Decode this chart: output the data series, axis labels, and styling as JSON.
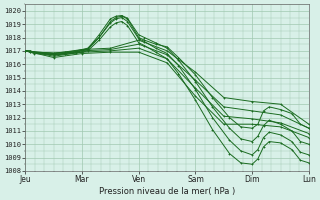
{
  "title": "",
  "xlabel": "Pression niveau de la mer( hPa )",
  "ylabel": "",
  "bg_color": "#d8f0e8",
  "grid_color": "#a0c8b0",
  "line_color": "#1a6b20",
  "ylim": [
    1008,
    1020.5
  ],
  "yticks": [
    1008,
    1009,
    1010,
    1011,
    1012,
    1013,
    1014,
    1015,
    1016,
    1017,
    1018,
    1019,
    1020
  ],
  "xtick_labels": [
    "Jeu",
    "Mar",
    "Ven",
    "Sam",
    "Dim",
    "Lun"
  ],
  "xtick_positions": [
    0,
    1,
    2,
    3,
    4,
    5
  ],
  "lines": [
    {
      "x": [
        0.0,
        0.08,
        0.16,
        0.5,
        0.7,
        0.9,
        1.0,
        1.1,
        1.3,
        1.5,
        1.6,
        1.7,
        1.8,
        2.0,
        2.1,
        2.3,
        2.5,
        2.7,
        3.0,
        3.3,
        3.6,
        3.8,
        4.0,
        4.1,
        4.2,
        4.3,
        4.5,
        4.7,
        4.85,
        5.0
      ],
      "y": [
        1017.0,
        1017.0,
        1016.9,
        1016.85,
        1016.9,
        1017.0,
        1017.1,
        1017.2,
        1018.0,
        1019.2,
        1019.5,
        1019.6,
        1019.4,
        1018.0,
        1017.8,
        1017.5,
        1017.3,
        1016.5,
        1015.2,
        1013.5,
        1012.0,
        1011.3,
        1011.2,
        1011.5,
        1012.5,
        1012.8,
        1012.6,
        1012.3,
        1011.5,
        1011.2
      ]
    },
    {
      "x": [
        0.0,
        0.08,
        0.16,
        0.5,
        0.7,
        0.9,
        1.0,
        1.1,
        1.3,
        1.5,
        1.6,
        1.7,
        1.8,
        2.0,
        2.1,
        2.3,
        2.5,
        2.7,
        3.0,
        3.3,
        3.6,
        3.8,
        4.0,
        4.1,
        4.2,
        4.3,
        4.5,
        4.7,
        4.85,
        5.0
      ],
      "y": [
        1017.0,
        1017.0,
        1016.9,
        1016.8,
        1016.85,
        1016.95,
        1017.05,
        1017.15,
        1018.2,
        1019.4,
        1019.6,
        1019.65,
        1019.45,
        1018.2,
        1018.0,
        1017.6,
        1017.2,
        1016.3,
        1014.7,
        1012.8,
        1011.2,
        1010.4,
        1010.2,
        1010.6,
        1011.4,
        1011.8,
        1011.5,
        1011.0,
        1010.2,
        1010.0
      ]
    },
    {
      "x": [
        0.0,
        0.08,
        0.16,
        0.5,
        0.7,
        0.9,
        1.0,
        1.1,
        1.3,
        1.5,
        1.6,
        1.7,
        1.8,
        2.0,
        2.1,
        2.3,
        2.5,
        2.7,
        3.0,
        3.3,
        3.6,
        3.8,
        4.0,
        4.1,
        4.2,
        4.3,
        4.5,
        4.7,
        4.85,
        5.0
      ],
      "y": [
        1017.0,
        1016.95,
        1016.85,
        1016.75,
        1016.8,
        1016.9,
        1017.0,
        1017.1,
        1018.0,
        1019.1,
        1019.4,
        1019.5,
        1019.2,
        1017.9,
        1017.7,
        1017.2,
        1016.8,
        1015.9,
        1014.1,
        1012.0,
        1010.3,
        1009.5,
        1009.2,
        1009.6,
        1010.5,
        1010.9,
        1010.7,
        1010.2,
        1009.4,
        1009.2
      ]
    },
    {
      "x": [
        0.0,
        0.08,
        0.16,
        0.5,
        0.7,
        0.9,
        1.0,
        1.1,
        1.3,
        1.5,
        1.6,
        1.7,
        1.8,
        2.0,
        2.1,
        2.3,
        2.5,
        2.7,
        3.0,
        3.3,
        3.6,
        3.8,
        4.0,
        4.1,
        4.2,
        4.3,
        4.5,
        4.7,
        4.85,
        5.0
      ],
      "y": [
        1017.0,
        1016.9,
        1016.8,
        1016.7,
        1016.75,
        1016.85,
        1016.9,
        1017.0,
        1017.8,
        1018.8,
        1019.1,
        1019.2,
        1018.9,
        1017.6,
        1017.4,
        1016.9,
        1016.4,
        1015.3,
        1013.3,
        1011.1,
        1009.3,
        1008.6,
        1008.5,
        1008.9,
        1009.8,
        1010.2,
        1010.1,
        1009.6,
        1008.8,
        1008.6
      ]
    },
    {
      "x": [
        0.0,
        0.5,
        1.0,
        1.5,
        2.0,
        2.5,
        3.0,
        3.5,
        4.0,
        4.5,
        5.0
      ],
      "y": [
        1017.0,
        1016.8,
        1017.1,
        1017.2,
        1017.8,
        1017.0,
        1015.4,
        1013.5,
        1013.2,
        1013.0,
        1011.5
      ]
    },
    {
      "x": [
        0.0,
        0.5,
        1.0,
        1.5,
        2.0,
        2.5,
        3.0,
        3.5,
        4.0,
        4.5,
        5.0
      ],
      "y": [
        1017.0,
        1016.7,
        1017.0,
        1017.1,
        1017.5,
        1016.7,
        1014.8,
        1012.8,
        1012.5,
        1012.2,
        1011.2
      ]
    },
    {
      "x": [
        0.0,
        0.5,
        1.0,
        1.5,
        2.0,
        2.5,
        3.0,
        3.5,
        4.0,
        4.5,
        5.0
      ],
      "y": [
        1017.0,
        1016.6,
        1016.9,
        1017.0,
        1017.2,
        1016.4,
        1014.2,
        1012.1,
        1011.9,
        1011.6,
        1010.8
      ]
    },
    {
      "x": [
        0.0,
        0.5,
        1.0,
        1.5,
        2.0,
        2.5,
        3.0,
        3.5,
        4.0,
        4.5,
        5.0
      ],
      "y": [
        1017.0,
        1016.5,
        1016.8,
        1016.9,
        1016.9,
        1016.1,
        1013.6,
        1011.5,
        1011.5,
        1011.3,
        1010.5
      ]
    }
  ]
}
